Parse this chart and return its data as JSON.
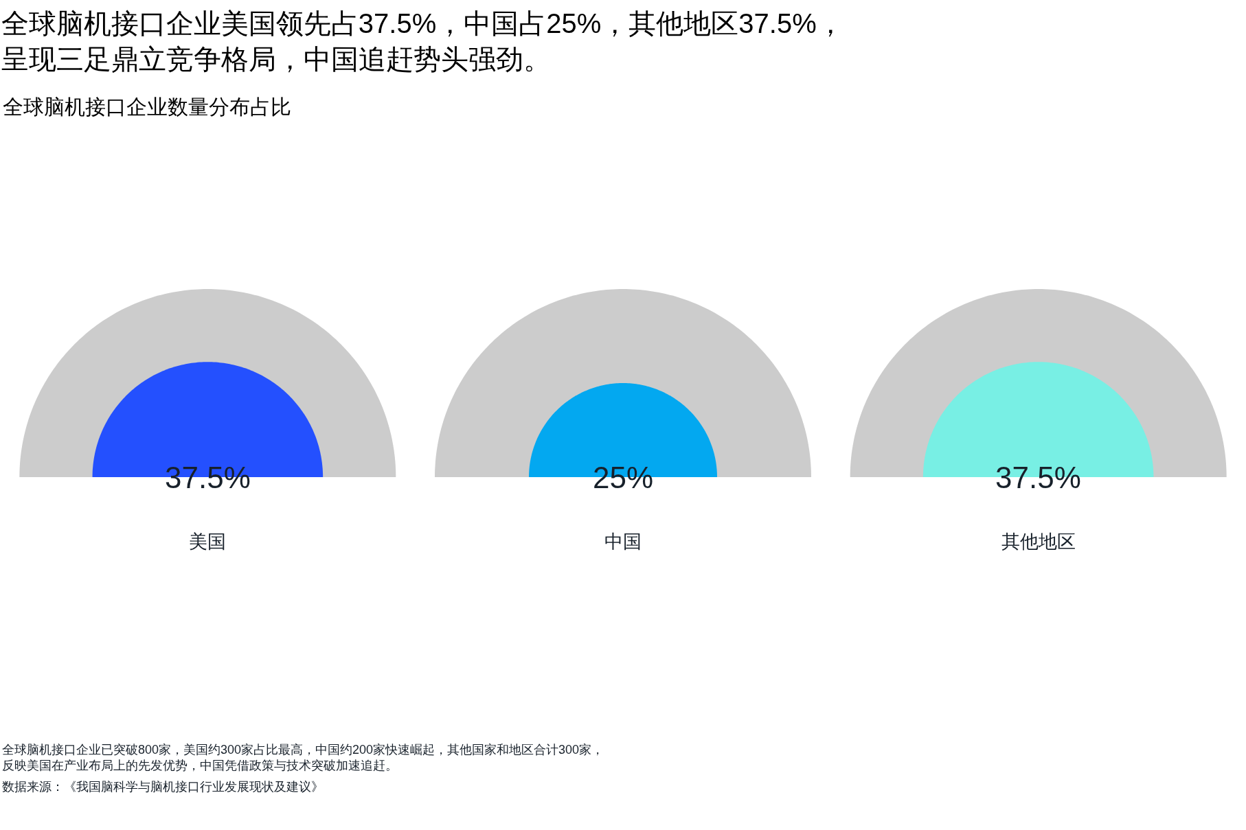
{
  "chart_data": {
    "type": "other",
    "title": "全球脑机接口企业美国领先占37.5%，中国占25%，其他地区37.5%，呈现三足鼎立竞争格局，中国追赶势头强劲。",
    "subtitle": "全球脑机接口企业数量分布占比",
    "categories": [
      "美国",
      "中国",
      "其他地区"
    ],
    "values": [
      37.5,
      25,
      37.5
    ],
    "colors": [
      "#2450fe",
      "#03a8f0",
      "#78efe4"
    ],
    "value_labels": [
      "37.5%",
      "25%",
      "37.5%"
    ],
    "annotations": [
      "全球脑机接口企业已突破800家，美国约300家占比最高，中国约200家快速崛起，其他国家和地区合计300家，反映美国在产业布局上的先发优势，中国凭借政策与技术突破加速追赶。",
      "数据来源：《我国脑科学与脑机接口行业发展现状及建议》"
    ]
  }
}
